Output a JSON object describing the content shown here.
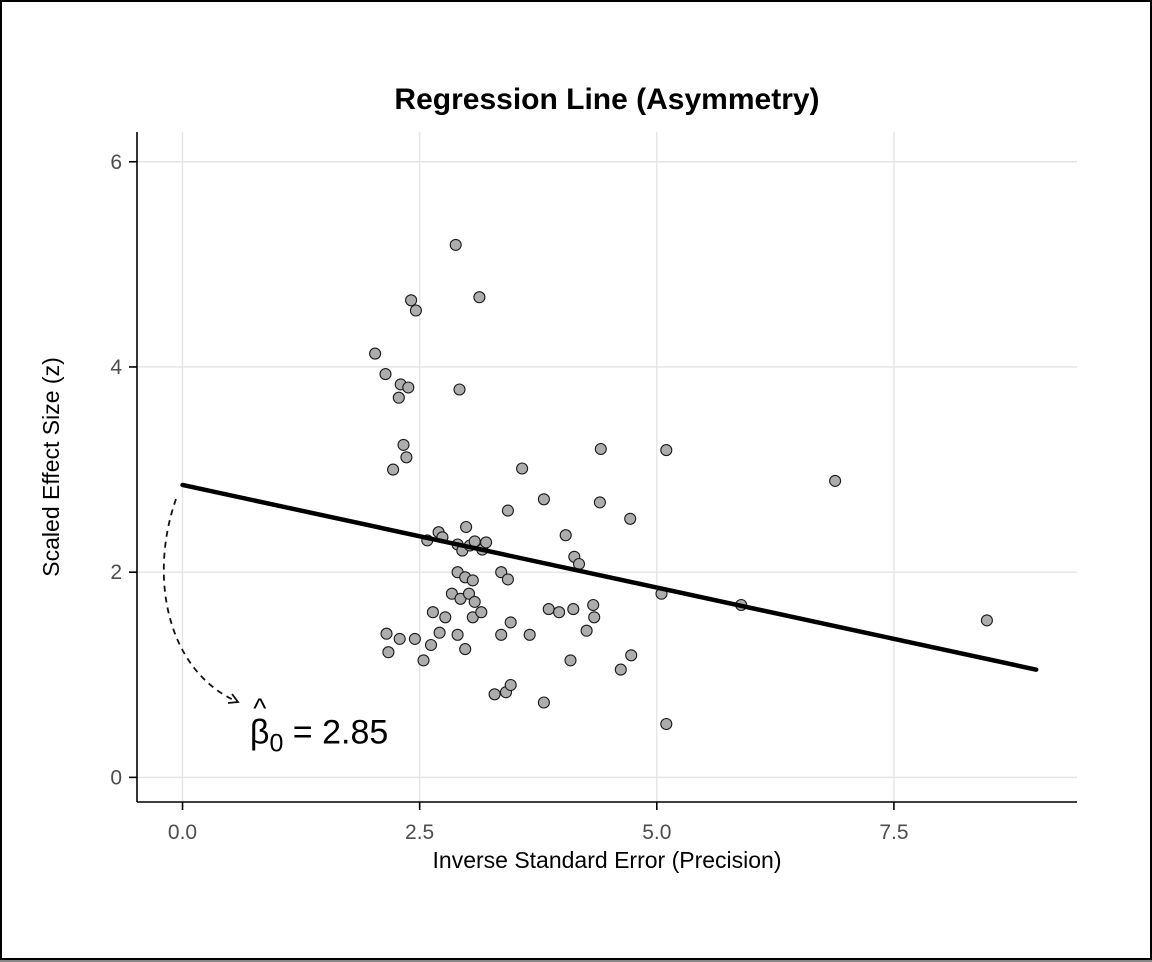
{
  "page": {
    "background": "#FFFFFF",
    "border_color": "#000000"
  },
  "chart_data": {
    "type": "scatter",
    "title": "Regression Line (Asymmetry)",
    "xlabel": "Inverse Standard Error (Precision)",
    "ylabel": "Scaled Effect Size (z)",
    "xlim": [
      -0.48,
      9.43
    ],
    "ylim": [
      -0.24,
      6.29
    ],
    "xticks": [
      0.0,
      2.5,
      5.0,
      7.5
    ],
    "xtick_labels": [
      "0.0",
      "2.5",
      "5.0",
      "7.5"
    ],
    "yticks": [
      0,
      2,
      4,
      6
    ],
    "ytick_labels": [
      "0",
      "2",
      "4",
      "6"
    ],
    "grid": true,
    "legend": "none",
    "points": [
      [
        2.88,
        5.19
      ],
      [
        3.13,
        4.68
      ],
      [
        2.41,
        4.65
      ],
      [
        2.46,
        4.55
      ],
      [
        2.03,
        4.13
      ],
      [
        2.14,
        3.93
      ],
      [
        2.3,
        3.83
      ],
      [
        2.38,
        3.8
      ],
      [
        2.28,
        3.7
      ],
      [
        2.92,
        3.78
      ],
      [
        2.33,
        3.24
      ],
      [
        2.36,
        3.12
      ],
      [
        2.22,
        3.0
      ],
      [
        4.41,
        3.2
      ],
      [
        5.1,
        3.19
      ],
      [
        3.58,
        3.01
      ],
      [
        6.88,
        2.89
      ],
      [
        3.81,
        2.71
      ],
      [
        4.4,
        2.68
      ],
      [
        3.43,
        2.6
      ],
      [
        4.72,
        2.52
      ],
      [
        2.58,
        2.31
      ],
      [
        2.7,
        2.39
      ],
      [
        2.74,
        2.34
      ],
      [
        2.99,
        2.44
      ],
      [
        2.9,
        2.27
      ],
      [
        2.95,
        2.21
      ],
      [
        3.03,
        2.26
      ],
      [
        3.08,
        2.3
      ],
      [
        3.16,
        2.22
      ],
      [
        3.2,
        2.29
      ],
      [
        4.04,
        2.36
      ],
      [
        4.13,
        2.15
      ],
      [
        4.18,
        2.08
      ],
      [
        2.9,
        2.0
      ],
      [
        2.98,
        1.95
      ],
      [
        3.06,
        1.92
      ],
      [
        3.36,
        2.0
      ],
      [
        3.43,
        1.93
      ],
      [
        2.84,
        1.79
      ],
      [
        2.93,
        1.74
      ],
      [
        3.02,
        1.79
      ],
      [
        3.08,
        1.71
      ],
      [
        5.05,
        1.79
      ],
      [
        5.89,
        1.68
      ],
      [
        2.64,
        1.61
      ],
      [
        2.77,
        1.56
      ],
      [
        3.06,
        1.56
      ],
      [
        3.15,
        1.61
      ],
      [
        3.86,
        1.64
      ],
      [
        3.97,
        1.61
      ],
      [
        4.12,
        1.64
      ],
      [
        4.33,
        1.68
      ],
      [
        8.48,
        1.53
      ],
      [
        2.15,
        1.4
      ],
      [
        2.29,
        1.35
      ],
      [
        2.45,
        1.35
      ],
      [
        2.62,
        1.29
      ],
      [
        2.71,
        1.41
      ],
      [
        2.9,
        1.39
      ],
      [
        3.36,
        1.39
      ],
      [
        3.46,
        1.51
      ],
      [
        3.66,
        1.39
      ],
      [
        4.26,
        1.43
      ],
      [
        4.34,
        1.56
      ],
      [
        2.17,
        1.22
      ],
      [
        2.54,
        1.14
      ],
      [
        2.98,
        1.25
      ],
      [
        4.09,
        1.14
      ],
      [
        4.73,
        1.19
      ],
      [
        4.62,
        1.05
      ],
      [
        3.29,
        0.81
      ],
      [
        3.41,
        0.83
      ],
      [
        3.46,
        0.9
      ],
      [
        3.81,
        0.73
      ],
      [
        5.1,
        0.52
      ]
    ],
    "regression_line": {
      "x_start": 0.0,
      "y_start": 2.85,
      "x_end": 9.0,
      "y_end": 1.05,
      "slope": -0.2,
      "intercept": 2.85
    },
    "annotation": {
      "display": "β̂₀ = 2.85",
      "label_beta": "β",
      "label_hat": "^",
      "label_subscript": "0",
      "label_value": " = 2.85",
      "intercept_value": 2.85,
      "arrow_start": [
        -0.07,
        2.71
      ],
      "arrow_end": [
        0.59,
        0.73
      ],
      "text_pos": [
        0.71,
        0.33
      ]
    },
    "style": {
      "point_fill": "#ADADAD",
      "point_stroke": "#1A1A1A",
      "line_color": "#000000",
      "grid_color": "#E4E4E4",
      "axis_color": "#000000",
      "tick_label_color": "#4D4D4D"
    }
  }
}
